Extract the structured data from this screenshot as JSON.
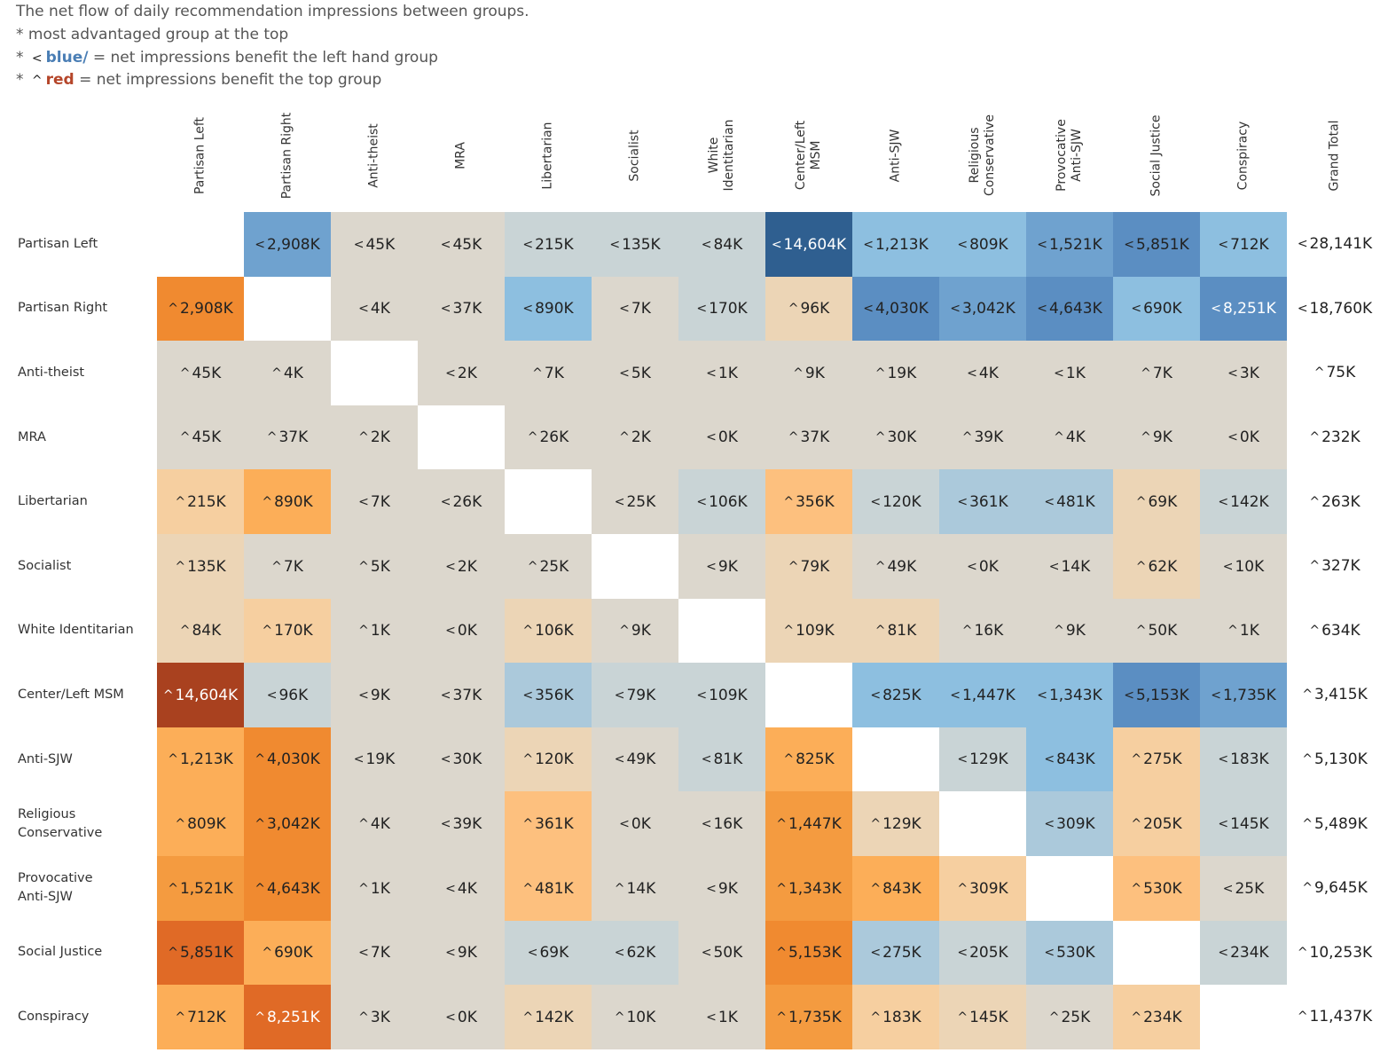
{
  "caption": {
    "line1": "The net flow of daily  recommendation impressions between groups.",
    "line2": "* most advantaged group at the top",
    "line3_prefix": "* ",
    "line3_glyph": "<",
    "line3_word": "blue/",
    "line3_rest": " =  net impressions benefit the left hand group",
    "line4_prefix": "* ",
    "line4_glyph": "^",
    "line4_word": "red",
    "line4_rest": " = net impressions benefit the top group"
  },
  "colors": {
    "blue_scale": [
      "#dcd7cd",
      "#c9d4d6",
      "#abc9db",
      "#8dbfe0",
      "#6fa2cf",
      "#5b8ec2",
      "#2f5f90"
    ],
    "orange_scale": [
      "#dcd7cd",
      "#ecd5b6",
      "#f6cfa0",
      "#fdc07e",
      "#fcae58",
      "#f49b40",
      "#f08a30",
      "#e06a26",
      "#a9411f"
    ]
  },
  "chart_data": {
    "type": "heatmap",
    "title": "The net flow of daily  recommendation impressions between groups.",
    "columns": [
      "Partisan Left",
      "Partisan Right",
      "Anti-theist",
      "MRA",
      "Libertarian",
      "Socialist",
      "White\nIdentitarian",
      "Center/Left\nMSM",
      "Anti-SJW",
      "Religious\nConservative",
      "Provocative\nAnti-SJW",
      "Social Justice",
      "Conspiracy"
    ],
    "total_header": "Grand Total",
    "rows": [
      "Partisan Left",
      "Partisan Right",
      "Anti-theist",
      "MRA",
      "Libertarian",
      "Socialist",
      "White Identitarian",
      "Center/Left MSM",
      "Anti-SJW",
      "Religious\nConservative",
      "Provocative\nAnti-SJW",
      "Social Justice",
      "Conspiracy"
    ],
    "glyph_left": "<",
    "glyph_top": "^",
    "cells": [
      [
        null,
        {
          "v": 2908,
          "d": "L"
        },
        {
          "v": 45,
          "d": "L"
        },
        {
          "v": 45,
          "d": "L"
        },
        {
          "v": 215,
          "d": "L"
        },
        {
          "v": 135,
          "d": "L"
        },
        {
          "v": 84,
          "d": "L"
        },
        {
          "v": 14604,
          "d": "L"
        },
        {
          "v": 1213,
          "d": "L"
        },
        {
          "v": 809,
          "d": "L"
        },
        {
          "v": 1521,
          "d": "L"
        },
        {
          "v": 5851,
          "d": "L"
        },
        {
          "v": 712,
          "d": "L"
        }
      ],
      [
        {
          "v": 2908,
          "d": "T"
        },
        null,
        {
          "v": 4,
          "d": "L"
        },
        {
          "v": 37,
          "d": "L"
        },
        {
          "v": 890,
          "d": "L"
        },
        {
          "v": 7,
          "d": "L"
        },
        {
          "v": 170,
          "d": "L"
        },
        {
          "v": 96,
          "d": "T"
        },
        {
          "v": 4030,
          "d": "L"
        },
        {
          "v": 3042,
          "d": "L"
        },
        {
          "v": 4643,
          "d": "L"
        },
        {
          "v": 690,
          "d": "L"
        },
        {
          "v": 8251,
          "d": "L"
        }
      ],
      [
        {
          "v": 45,
          "d": "T"
        },
        {
          "v": 4,
          "d": "T"
        },
        null,
        {
          "v": 2,
          "d": "L"
        },
        {
          "v": 7,
          "d": "T"
        },
        {
          "v": 5,
          "d": "L"
        },
        {
          "v": 1,
          "d": "L"
        },
        {
          "v": 9,
          "d": "T"
        },
        {
          "v": 19,
          "d": "T"
        },
        {
          "v": 4,
          "d": "L"
        },
        {
          "v": 1,
          "d": "L"
        },
        {
          "v": 7,
          "d": "T"
        },
        {
          "v": 3,
          "d": "L"
        }
      ],
      [
        {
          "v": 45,
          "d": "T"
        },
        {
          "v": 37,
          "d": "T"
        },
        {
          "v": 2,
          "d": "T"
        },
        null,
        {
          "v": 26,
          "d": "T"
        },
        {
          "v": 2,
          "d": "T"
        },
        {
          "v": 0,
          "d": "L"
        },
        {
          "v": 37,
          "d": "T"
        },
        {
          "v": 30,
          "d": "T"
        },
        {
          "v": 39,
          "d": "T"
        },
        {
          "v": 4,
          "d": "T"
        },
        {
          "v": 9,
          "d": "T"
        },
        {
          "v": 0,
          "d": "L"
        }
      ],
      [
        {
          "v": 215,
          "d": "T"
        },
        {
          "v": 890,
          "d": "T"
        },
        {
          "v": 7,
          "d": "L"
        },
        {
          "v": 26,
          "d": "L"
        },
        null,
        {
          "v": 25,
          "d": "L"
        },
        {
          "v": 106,
          "d": "L"
        },
        {
          "v": 356,
          "d": "T"
        },
        {
          "v": 120,
          "d": "L"
        },
        {
          "v": 361,
          "d": "L"
        },
        {
          "v": 481,
          "d": "L"
        },
        {
          "v": 69,
          "d": "T"
        },
        {
          "v": 142,
          "d": "L"
        }
      ],
      [
        {
          "v": 135,
          "d": "T"
        },
        {
          "v": 7,
          "d": "T"
        },
        {
          "v": 5,
          "d": "T"
        },
        {
          "v": 2,
          "d": "L"
        },
        {
          "v": 25,
          "d": "T"
        },
        null,
        {
          "v": 9,
          "d": "L"
        },
        {
          "v": 79,
          "d": "T"
        },
        {
          "v": 49,
          "d": "T"
        },
        {
          "v": 0,
          "d": "L"
        },
        {
          "v": 14,
          "d": "L"
        },
        {
          "v": 62,
          "d": "T"
        },
        {
          "v": 10,
          "d": "L"
        }
      ],
      [
        {
          "v": 84,
          "d": "T"
        },
        {
          "v": 170,
          "d": "T"
        },
        {
          "v": 1,
          "d": "T"
        },
        {
          "v": 0,
          "d": "L"
        },
        {
          "v": 106,
          "d": "T"
        },
        {
          "v": 9,
          "d": "T"
        },
        null,
        {
          "v": 109,
          "d": "T"
        },
        {
          "v": 81,
          "d": "T"
        },
        {
          "v": 16,
          "d": "T"
        },
        {
          "v": 9,
          "d": "T"
        },
        {
          "v": 50,
          "d": "T"
        },
        {
          "v": 1,
          "d": "T"
        }
      ],
      [
        {
          "v": 14604,
          "d": "T"
        },
        {
          "v": 96,
          "d": "L"
        },
        {
          "v": 9,
          "d": "L"
        },
        {
          "v": 37,
          "d": "L"
        },
        {
          "v": 356,
          "d": "L"
        },
        {
          "v": 79,
          "d": "L"
        },
        {
          "v": 109,
          "d": "L"
        },
        null,
        {
          "v": 825,
          "d": "L"
        },
        {
          "v": 1447,
          "d": "L"
        },
        {
          "v": 1343,
          "d": "L"
        },
        {
          "v": 5153,
          "d": "L"
        },
        {
          "v": 1735,
          "d": "L"
        }
      ],
      [
        {
          "v": 1213,
          "d": "T"
        },
        {
          "v": 4030,
          "d": "T"
        },
        {
          "v": 19,
          "d": "L"
        },
        {
          "v": 30,
          "d": "L"
        },
        {
          "v": 120,
          "d": "T"
        },
        {
          "v": 49,
          "d": "L"
        },
        {
          "v": 81,
          "d": "L"
        },
        {
          "v": 825,
          "d": "T"
        },
        null,
        {
          "v": 129,
          "d": "L"
        },
        {
          "v": 843,
          "d": "L"
        },
        {
          "v": 275,
          "d": "T"
        },
        {
          "v": 183,
          "d": "L"
        }
      ],
      [
        {
          "v": 809,
          "d": "T"
        },
        {
          "v": 3042,
          "d": "T"
        },
        {
          "v": 4,
          "d": "T"
        },
        {
          "v": 39,
          "d": "L"
        },
        {
          "v": 361,
          "d": "T"
        },
        {
          "v": 0,
          "d": "L"
        },
        {
          "v": 16,
          "d": "L"
        },
        {
          "v": 1447,
          "d": "T"
        },
        {
          "v": 129,
          "d": "T"
        },
        null,
        {
          "v": 309,
          "d": "L"
        },
        {
          "v": 205,
          "d": "T"
        },
        {
          "v": 145,
          "d": "L"
        }
      ],
      [
        {
          "v": 1521,
          "d": "T"
        },
        {
          "v": 4643,
          "d": "T"
        },
        {
          "v": 1,
          "d": "T"
        },
        {
          "v": 4,
          "d": "L"
        },
        {
          "v": 481,
          "d": "T"
        },
        {
          "v": 14,
          "d": "T"
        },
        {
          "v": 9,
          "d": "L"
        },
        {
          "v": 1343,
          "d": "T"
        },
        {
          "v": 843,
          "d": "T"
        },
        {
          "v": 309,
          "d": "T"
        },
        null,
        {
          "v": 530,
          "d": "T"
        },
        {
          "v": 25,
          "d": "L"
        }
      ],
      [
        {
          "v": 5851,
          "d": "T"
        },
        {
          "v": 690,
          "d": "T"
        },
        {
          "v": 7,
          "d": "L"
        },
        {
          "v": 9,
          "d": "L"
        },
        {
          "v": 69,
          "d": "L"
        },
        {
          "v": 62,
          "d": "L"
        },
        {
          "v": 50,
          "d": "L"
        },
        {
          "v": 5153,
          "d": "T"
        },
        {
          "v": 275,
          "d": "L"
        },
        {
          "v": 205,
          "d": "L"
        },
        {
          "v": 530,
          "d": "L"
        },
        null,
        {
          "v": 234,
          "d": "L"
        }
      ],
      [
        {
          "v": 712,
          "d": "T"
        },
        {
          "v": 8251,
          "d": "T"
        },
        {
          "v": 3,
          "d": "T"
        },
        {
          "v": 0,
          "d": "L"
        },
        {
          "v": 142,
          "d": "T"
        },
        {
          "v": 10,
          "d": "T"
        },
        {
          "v": 1,
          "d": "L"
        },
        {
          "v": 1735,
          "d": "T"
        },
        {
          "v": 183,
          "d": "T"
        },
        {
          "v": 145,
          "d": "T"
        },
        {
          "v": 25,
          "d": "T"
        },
        {
          "v": 234,
          "d": "T"
        },
        null
      ]
    ],
    "totals": [
      {
        "v": 28141,
        "d": "L"
      },
      {
        "v": 18760,
        "d": "L"
      },
      {
        "v": 75,
        "d": "T"
      },
      {
        "v": 232,
        "d": "T"
      },
      {
        "v": 263,
        "d": "T"
      },
      {
        "v": 327,
        "d": "T"
      },
      {
        "v": 634,
        "d": "T"
      },
      {
        "v": 3415,
        "d": "T"
      },
      {
        "v": 5130,
        "d": "T"
      },
      {
        "v": 5489,
        "d": "T"
      },
      {
        "v": 9645,
        "d": "T"
      },
      {
        "v": 10253,
        "d": "T"
      },
      {
        "v": 11437,
        "d": "T"
      }
    ],
    "unit": "K"
  }
}
